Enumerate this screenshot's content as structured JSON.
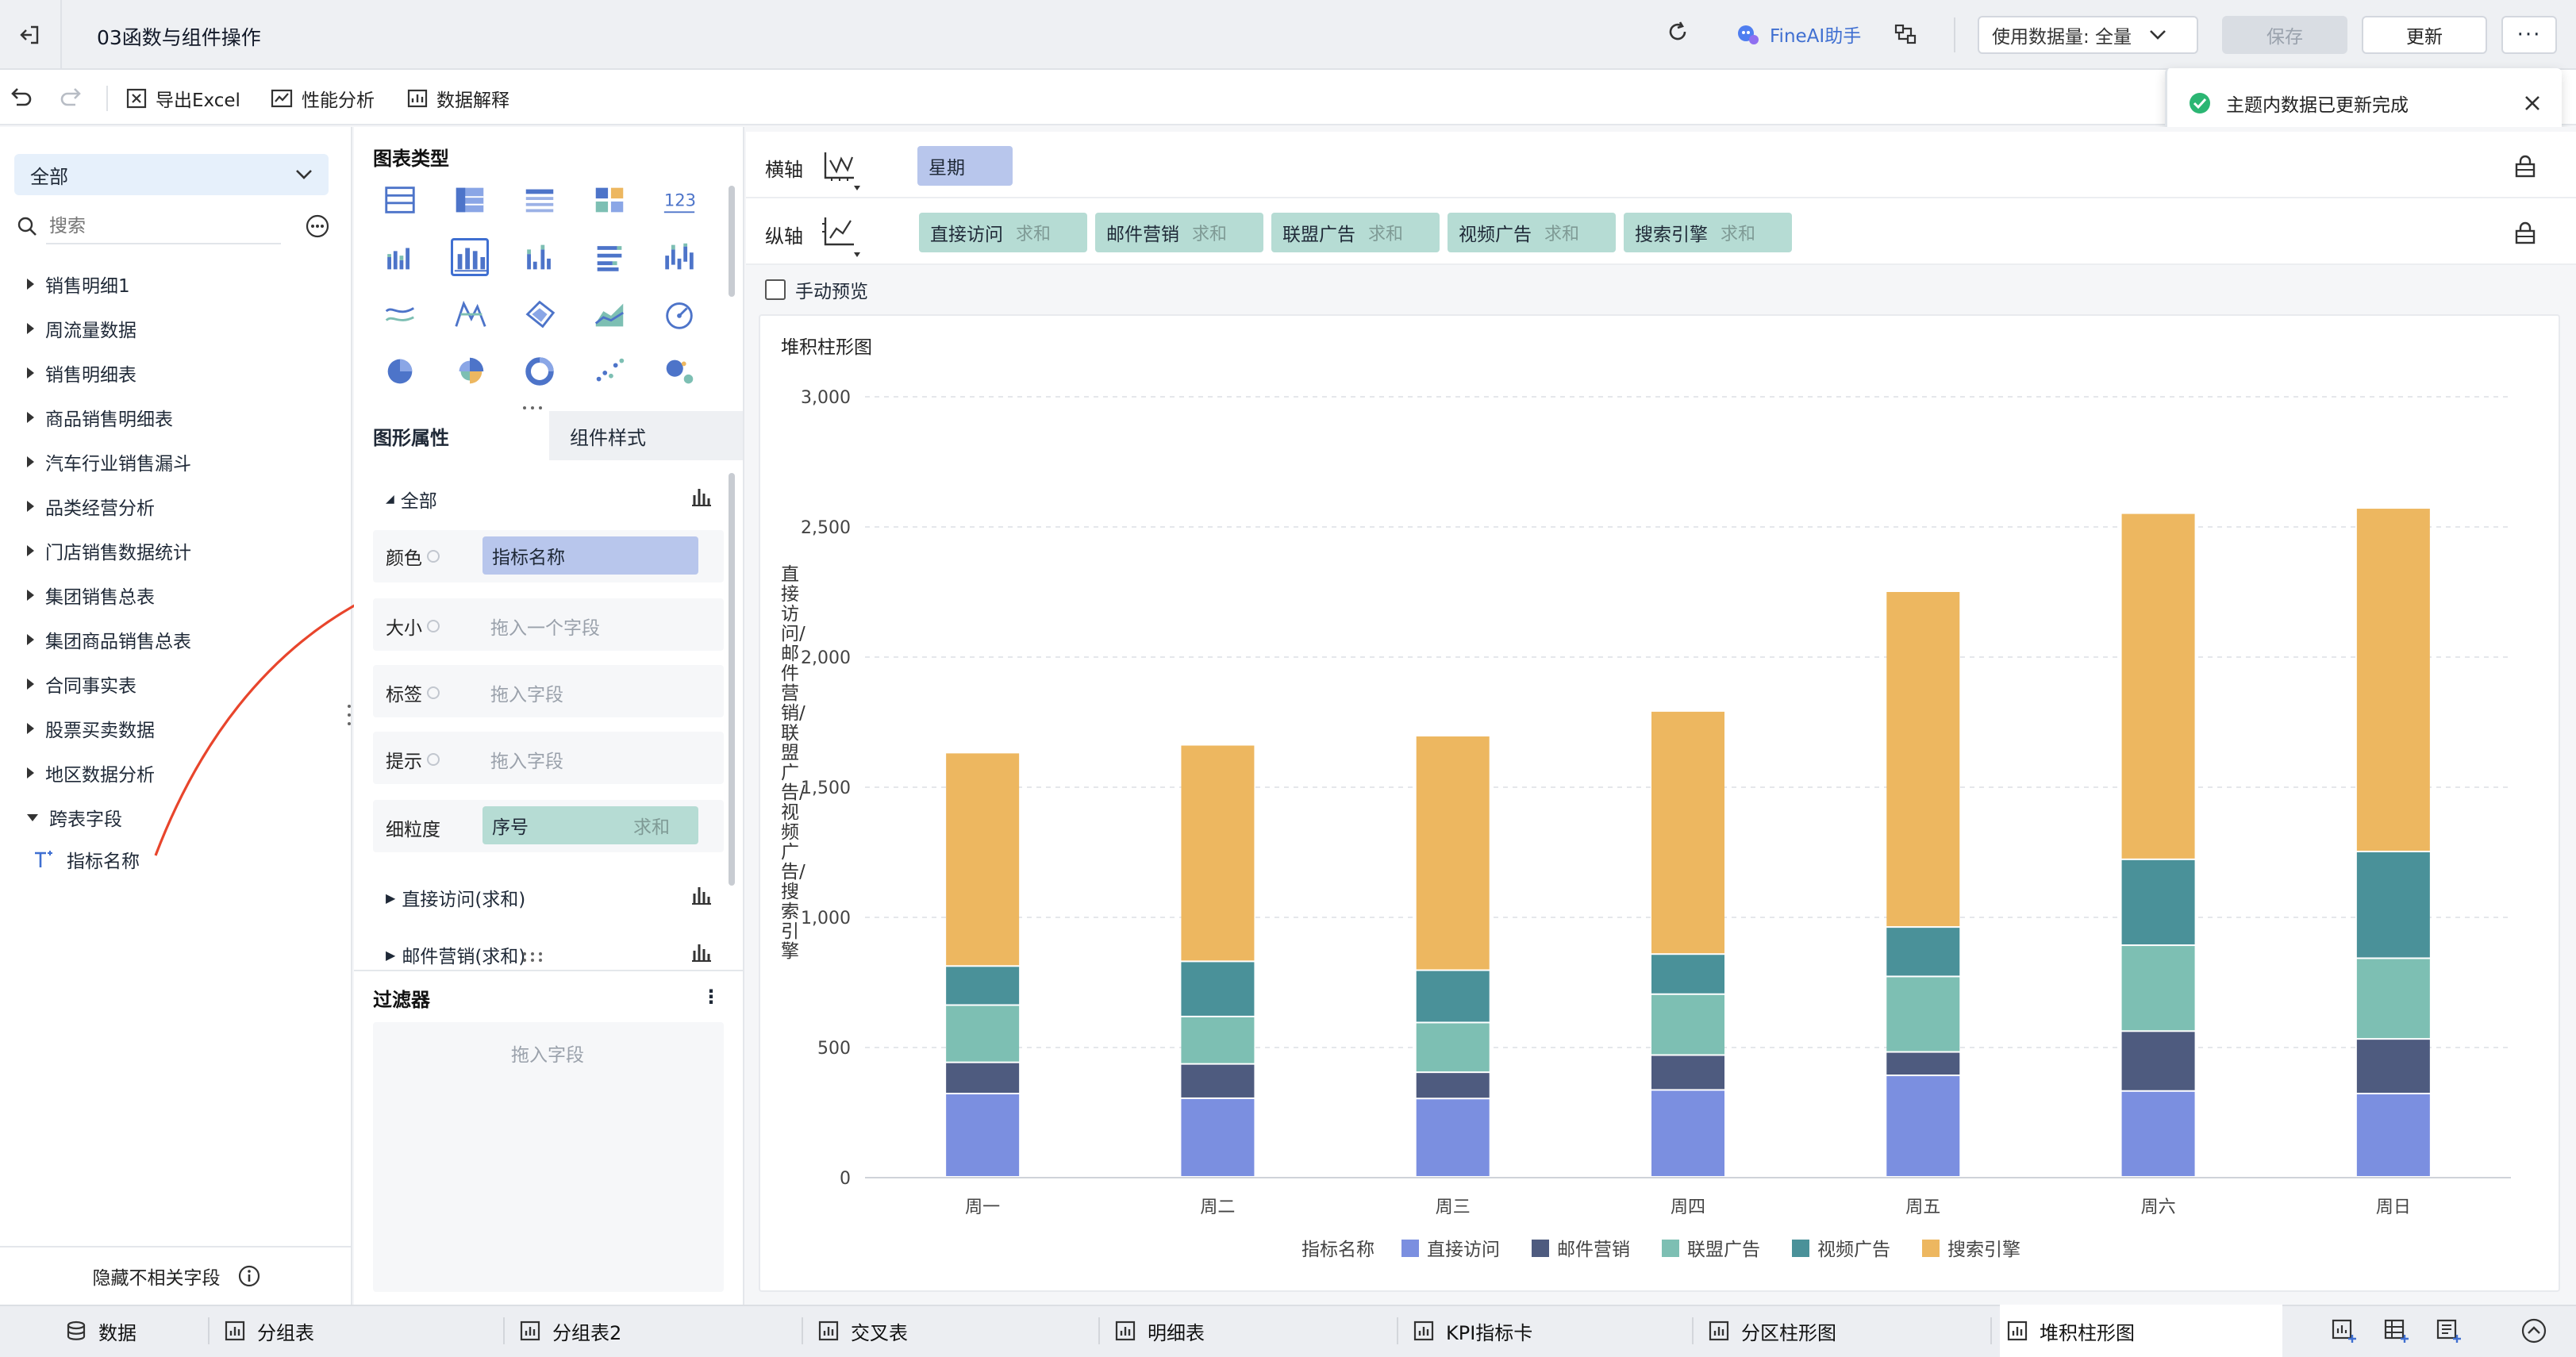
{
  "app": {
    "title": "03函数与组件操作",
    "ai_assistant": "FineAI助手",
    "usage_label": "使用数据量: 全量",
    "save_label": "保存",
    "update_label": "更新",
    "more_label": "···"
  },
  "toolbar": {
    "export_excel": "导出Excel",
    "perf_analysis": "性能分析",
    "data_explain": "数据解释"
  },
  "toast": {
    "message": "主题内数据已更新完成"
  },
  "left_panel": {
    "scope": "全部",
    "search_placeholder": "搜索",
    "tables": [
      "销售明细1",
      "周流量数据",
      "销售明细表",
      "商品销售明细表",
      "汽车行业销售漏斗",
      "品类经营分析",
      "门店销售数据统计",
      "集团销售总表",
      "集团商品销售总表",
      "合同事实表",
      "股票买卖数据",
      "地区数据分析",
      "跨表字段"
    ],
    "cross_field": "指标名称",
    "hide_irrelevant": "隐藏不相关字段"
  },
  "mid_panel": {
    "chart_type_title": "图表类型",
    "tab_graph_props": "图形属性",
    "tab_component_style": "组件样式",
    "all_label": "全部",
    "color_label": "颜色",
    "color_field": "指标名称",
    "size_label": "大小",
    "size_placeholder": "拖入一个字段",
    "tag_label": "标签",
    "tag_placeholder": "拖入字段",
    "tip_label": "提示",
    "tip_placeholder": "拖入字段",
    "granularity_label": "细粒度",
    "granularity_field": "序号",
    "granularity_agg": "求和",
    "series_1": "直接访问(求和)",
    "series_2": "邮件营销(求和)",
    "filter_title": "过滤器",
    "filter_placeholder": "拖入字段"
  },
  "axes": {
    "x_label": "横轴",
    "x_field": "星期",
    "y_label": "纵轴",
    "y_fields": [
      {
        "name": "直接访问",
        "agg": "求和"
      },
      {
        "name": "邮件营销",
        "agg": "求和"
      },
      {
        "name": "联盟广告",
        "agg": "求和"
      },
      {
        "name": "视频广告",
        "agg": "求和"
      },
      {
        "name": "搜索引擎",
        "agg": "求和"
      }
    ],
    "manual_preview": "手动预览"
  },
  "colors": {
    "direct": "#7b8fe0",
    "email": "#4e5b7f",
    "union": "#7dbfb3",
    "video": "#4a9199",
    "search": "#edb760",
    "accent": "#3f6fd1"
  },
  "chart_data": {
    "type": "bar",
    "stacked": true,
    "title": "堆积柱形图",
    "ylabel": "直接访问/邮件营销/联盟广告/视频广告/搜索引擎",
    "xlabel": "",
    "categories": [
      "周一",
      "周二",
      "周三",
      "周四",
      "周五",
      "周六",
      "周日"
    ],
    "ylim": [
      0,
      3000
    ],
    "yticks": [
      "0",
      "500",
      "1,000",
      "1,500",
      "2,000",
      "2,500",
      "3,000"
    ],
    "legend_title": "指标名称",
    "legend_position": "bottom",
    "grid": true,
    "series": [
      {
        "name": "直接访问",
        "values": [
          320,
          302,
          301,
          334,
          390,
          330,
          320
        ]
      },
      {
        "name": "邮件营销",
        "values": [
          120,
          132,
          101,
          134,
          90,
          230,
          210
        ]
      },
      {
        "name": "联盟广告",
        "values": [
          220,
          182,
          191,
          234,
          290,
          330,
          310
        ]
      },
      {
        "name": "视频广告",
        "values": [
          150,
          212,
          201,
          154,
          190,
          330,
          410
        ]
      },
      {
        "name": "搜索引擎",
        "values": [
          820,
          832,
          901,
          934,
          1290,
          1330,
          1320
        ]
      }
    ]
  },
  "bottom_tabs": [
    "数据",
    "分组表",
    "分组表2",
    "交叉表",
    "明细表",
    "KPI指标卡",
    "分区柱形图",
    "堆积柱形图"
  ]
}
